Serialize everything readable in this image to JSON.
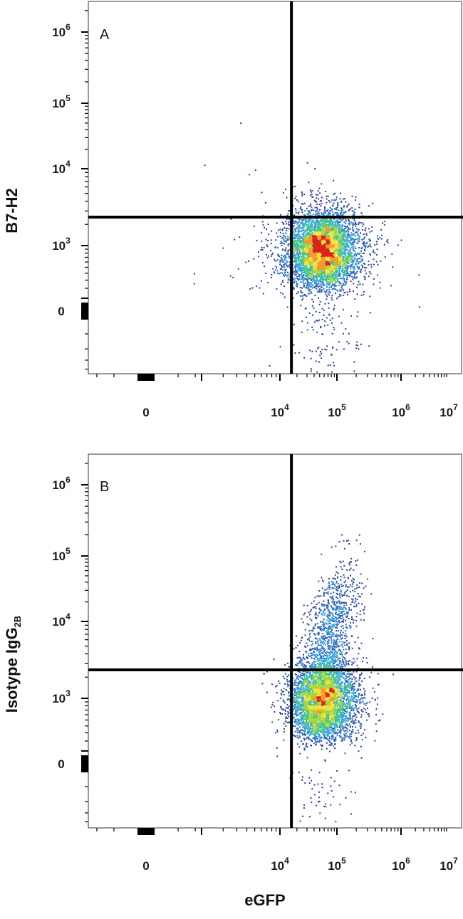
{
  "chart_data": [
    {
      "type": "scatter",
      "panel_label": "A",
      "ylabel": "B7-H2",
      "ylabel_sub": "",
      "xlabel": "",
      "x_ticks": [
        {
          "value": 0,
          "base": "0",
          "exp": ""
        },
        {
          "value": 10000,
          "base": "10",
          "exp": "4"
        },
        {
          "value": 100000,
          "base": "10",
          "exp": "5"
        },
        {
          "value": 1000000,
          "base": "10",
          "exp": "6"
        },
        {
          "value": 10000000,
          "base": "10",
          "exp": "7"
        }
      ],
      "y_ticks": [
        {
          "value": 0,
          "base": "0",
          "exp": ""
        },
        {
          "value": 1000,
          "base": "10",
          "exp": "3"
        },
        {
          "value": 10000,
          "base": "10",
          "exp": "4"
        },
        {
          "value": 100000,
          "base": "10",
          "exp": "5"
        },
        {
          "value": 1000000,
          "base": "10",
          "exp": "6"
        }
      ],
      "x_scale": "biexponential",
      "y_scale": "biexponential",
      "quadrant_gate": {
        "x": 16000,
        "y": 2500
      },
      "populations": [
        {
          "center": [
            55000,
            900
          ],
          "spread_log": [
            0.32,
            0.28
          ],
          "fraction": 0.98
        },
        {
          "center": [
            30000,
            900
          ],
          "spread_log": [
            0.7,
            0.5
          ],
          "fraction": 0.02
        }
      ]
    },
    {
      "type": "scatter",
      "panel_label": "B",
      "ylabel": "Isotype IgG",
      "ylabel_sub": "2B",
      "xlabel": "eGFP",
      "x_ticks": [
        {
          "value": 0,
          "base": "0",
          "exp": ""
        },
        {
          "value": 10000,
          "base": "10",
          "exp": "4"
        },
        {
          "value": 100000,
          "base": "10",
          "exp": "5"
        },
        {
          "value": 1000000,
          "base": "10",
          "exp": "6"
        },
        {
          "value": 10000000,
          "base": "10",
          "exp": "7"
        }
      ],
      "y_ticks": [
        {
          "value": 0,
          "base": "0",
          "exp": ""
        },
        {
          "value": 1000,
          "base": "10",
          "exp": "3"
        },
        {
          "value": 10000,
          "base": "10",
          "exp": "4"
        },
        {
          "value": 100000,
          "base": "10",
          "exp": "5"
        },
        {
          "value": 1000000,
          "base": "10",
          "exp": "6"
        }
      ],
      "x_scale": "biexponential",
      "y_scale": "biexponential",
      "quadrant_gate": {
        "x": 16000,
        "y": 2500
      },
      "populations": [
        {
          "center": [
            55000,
            950
          ],
          "spread_log": [
            0.3,
            0.3
          ],
          "fraction": 0.8
        },
        {
          "center": [
            80000,
            8000
          ],
          "spread_log": [
            0.22,
            0.45
          ],
          "fraction": 0.2
        }
      ]
    }
  ]
}
